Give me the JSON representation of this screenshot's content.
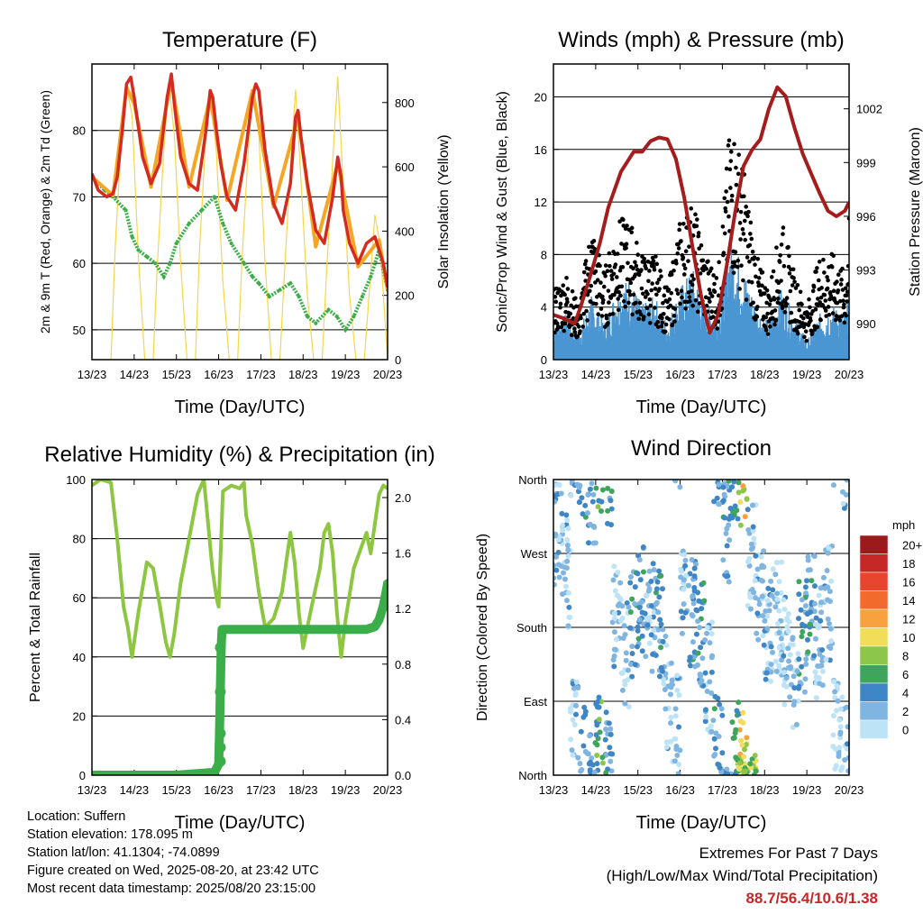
{
  "info": {
    "location": "Location: Suffern",
    "elevation": "Station elevation: 178.095 m",
    "latlon": "Station lat/lon: 41.1304; -74.0899",
    "created": "Figure created on Wed, 2025-08-20, at 23:42 UTC",
    "recent": "Most recent data timestamp: 2025/08/20 23:15:00"
  },
  "extremes": {
    "title": "Extremes For Past 7 Days",
    "subtitle": "(High/Low/Max Wind/Total Precipitation)",
    "values": "88.7/56.4/10.6/1.38"
  },
  "colors": {
    "temp_red": "#d42a20",
    "temp_orange": "#f5a623",
    "dewpoint": "#3cae49",
    "solar": "#f7d54a",
    "gust": "#000000",
    "wind": "#4b96d2",
    "pressure": "#a51c1c",
    "rh": "#8dc641",
    "precip": "#3cae49"
  },
  "chart_data": [
    {
      "type": "line",
      "title": "Temperature (F)",
      "xlabel": "Time (Day/UTC)",
      "ylabel": "2m & 9m T (Red, Orange) & 2m Td (Green)",
      "ylabel_right": "Solar Insolation (Yellow)",
      "x_ticks": [
        "13/23",
        "14/23",
        "15/23",
        "16/23",
        "17/23",
        "18/23",
        "19/23",
        "20/23"
      ],
      "y_ticks": [
        "50",
        "60",
        "70",
        "80"
      ],
      "y_ticks_right": [
        "0",
        "200",
        "400",
        "600",
        "800"
      ],
      "ylim": [
        45.5,
        90
      ],
      "ylim_right": [
        0,
        920
      ],
      "xlim": [
        0,
        7
      ],
      "series": [
        {
          "name": "2m T",
          "color": "#d42a20",
          "axis": "left",
          "x": [
            0,
            0.15,
            0.35,
            0.5,
            0.6,
            0.72,
            0.82,
            0.92,
            1.0,
            1.2,
            1.4,
            1.6,
            1.78,
            1.88,
            1.95,
            2.1,
            2.3,
            2.5,
            2.7,
            2.8,
            2.86,
            2.95,
            3.05,
            3.2,
            3.4,
            3.6,
            3.8,
            3.88,
            3.95,
            4.1,
            4.3,
            4.5,
            4.7,
            4.82,
            4.88,
            4.95,
            5.1,
            5.3,
            5.5,
            5.7,
            5.82,
            5.9,
            5.95,
            6.1,
            6.3,
            6.5,
            6.7,
            6.8,
            6.9,
            7.0
          ],
          "y": [
            73.5,
            71,
            70,
            70.5,
            73,
            80,
            87,
            88,
            85,
            76,
            72,
            75,
            85,
            88.5,
            84,
            76,
            72,
            71,
            80,
            86,
            85,
            80,
            75,
            70,
            68,
            75,
            85,
            87,
            86,
            77,
            69,
            66,
            72,
            82,
            83,
            79,
            72,
            65,
            63,
            70,
            76,
            73,
            68,
            63,
            60,
            63,
            64,
            62,
            60,
            56.4
          ]
        },
        {
          "name": "9m T",
          "color": "#f5a623",
          "axis": "left",
          "x": [
            0,
            0.5,
            0.82,
            1.0,
            1.4,
            1.88,
            2.3,
            2.8,
            3.2,
            3.8,
            4.3,
            4.88,
            5.3,
            5.82,
            6.3,
            6.8,
            7.0
          ],
          "y": [
            73,
            70.2,
            86.5,
            84,
            71.5,
            87.5,
            71.5,
            85,
            69.5,
            86,
            68.5,
            82,
            62.5,
            75,
            59.5,
            63.5,
            56
          ]
        },
        {
          "name": "2m Td",
          "color": "#3cae49",
          "axis": "left",
          "x": [
            0,
            0.3,
            0.5,
            0.8,
            0.95,
            1.1,
            1.3,
            1.5,
            1.7,
            1.85,
            2.0,
            2.3,
            2.6,
            2.9,
            3.1,
            3.3,
            3.6,
            3.8,
            3.95,
            4.2,
            4.45,
            4.7,
            4.9,
            5.1,
            5.3,
            5.6,
            5.8,
            6.0,
            6.2,
            6.4,
            6.6,
            6.8,
            7.0
          ],
          "y": [
            73,
            71,
            70,
            68,
            64,
            62,
            61,
            60,
            58,
            60,
            63,
            66,
            68,
            70,
            66,
            63,
            60,
            58,
            57,
            55,
            56,
            57,
            55,
            52,
            51,
            53,
            52,
            50,
            52,
            55,
            58,
            62,
            56
          ]
        },
        {
          "name": "Solar",
          "color": "#f7d54a",
          "axis": "right",
          "x": [
            0,
            0.45,
            0.55,
            0.7,
            0.82,
            0.95,
            1.1,
            1.25,
            1.45,
            1.55,
            1.7,
            1.82,
            1.95,
            2.1,
            2.25,
            2.45,
            2.55,
            2.7,
            2.82,
            2.95,
            3.1,
            3.25,
            3.45,
            3.55,
            3.7,
            3.82,
            3.95,
            4.1,
            4.25,
            4.45,
            4.55,
            4.7,
            4.82,
            4.95,
            5.1,
            5.25,
            5.45,
            5.55,
            5.7,
            5.82,
            5.95,
            6.1,
            6.25,
            6.45,
            6.55,
            6.7,
            6.82,
            6.95,
            7.0
          ],
          "y": [
            0,
            0,
            350,
            700,
            850,
            760,
            320,
            0,
            0,
            300,
            650,
            860,
            700,
            300,
            0,
            0,
            350,
            700,
            820,
            640,
            240,
            0,
            0,
            300,
            650,
            850,
            700,
            300,
            0,
            0,
            250,
            600,
            840,
            560,
            200,
            0,
            0,
            260,
            620,
            880,
            540,
            200,
            0,
            0,
            180,
            450,
            360,
            100,
            0
          ]
        }
      ]
    },
    {
      "type": "scatter",
      "title": "Winds (mph) & Pressure (mb)",
      "xlabel": "Time (Day/UTC)",
      "ylabel": "Sonic/Prop Wind & Gust (Blue, Black)",
      "ylabel_right": "Station Pressure (Maroon)",
      "x_ticks": [
        "13/23",
        "14/23",
        "15/23",
        "16/23",
        "17/23",
        "18/23",
        "19/23",
        "20/23"
      ],
      "y_ticks": [
        "0",
        "4",
        "8",
        "12",
        "16",
        "20"
      ],
      "y_ticks_right": [
        "990",
        "993",
        "996",
        "999",
        "1002"
      ],
      "ylim": [
        0,
        22.5
      ],
      "ylim_right": [
        988,
        1004.5
      ],
      "xlim": [
        0,
        7
      ],
      "series": [
        {
          "name": "Pressure",
          "color": "#a51c1c",
          "axis": "right",
          "kind": "line",
          "x": [
            0,
            0.25,
            0.5,
            0.65,
            0.85,
            1.1,
            1.3,
            1.6,
            1.9,
            2.1,
            2.3,
            2.5,
            2.7,
            2.9,
            3.1,
            3.3,
            3.5,
            3.7,
            3.9,
            4.1,
            4.3,
            4.5,
            4.7,
            4.9,
            5.1,
            5.3,
            5.5,
            5.7,
            5.9,
            6.1,
            6.3,
            6.5,
            6.7,
            6.9,
            7.0
          ],
          "y": [
            990.5,
            990.3,
            990,
            991,
            992.5,
            994.5,
            996.5,
            998.5,
            999.6,
            999.6,
            1000.2,
            1000.4,
            1000.3,
            999.2,
            997,
            994.2,
            991.5,
            989.5,
            990.5,
            993.2,
            996.2,
            998.8,
            999.7,
            1000.3,
            1002,
            1003.2,
            1002.7,
            1001,
            999.5,
            998.4,
            997.3,
            996.3,
            996,
            996.3,
            996.8
          ]
        },
        {
          "name": "Wind",
          "color": "#4b96d2",
          "axis": "left",
          "kind": "band",
          "x": [
            0,
            0.3,
            0.6,
            0.9,
            1.2,
            1.5,
            1.8,
            2.1,
            2.4,
            2.7,
            3.0,
            3.3,
            3.6,
            3.9,
            4.2,
            4.5,
            4.8,
            5.1,
            5.4,
            5.7,
            6.0,
            6.3,
            6.6,
            6.9,
            7.0
          ],
          "y": [
            2,
            2.5,
            1.5,
            3.5,
            2,
            4,
            4.5,
            3,
            3.5,
            2,
            4,
            5,
            3,
            2.5,
            7,
            5,
            3,
            2,
            4,
            2.5,
            1,
            2.5,
            3,
            2.5,
            3.5
          ]
        },
        {
          "name": "Gust",
          "color": "#000000",
          "axis": "left",
          "kind": "dots",
          "x": [
            0,
            0.3,
            0.6,
            0.9,
            1.2,
            1.5,
            1.8,
            2.1,
            2.4,
            2.7,
            3.0,
            3.3,
            3.6,
            3.9,
            4.2,
            4.5,
            4.8,
            5.1,
            5.4,
            5.7,
            6.0,
            6.3,
            6.6,
            6.9,
            7.0
          ],
          "y": [
            4,
            5,
            3,
            8,
            5,
            8,
            8,
            6,
            6,
            4,
            8,
            9,
            6,
            5,
            14,
            11,
            6,
            4,
            8,
            5,
            3,
            6,
            6,
            5,
            8
          ]
        }
      ]
    },
    {
      "type": "line",
      "title": "Relative Humidity (%) & Precipitation (in)",
      "xlabel": "Time (Day/UTC)",
      "ylabel": "Percent & Total Rainfall",
      "x_ticks": [
        "13/23",
        "14/23",
        "15/23",
        "16/23",
        "17/23",
        "18/23",
        "19/23",
        "20/23"
      ],
      "y_ticks": [
        "0",
        "20",
        "40",
        "60",
        "80",
        "100"
      ],
      "y_ticks_right": [
        "0.0",
        "0.4",
        "0.8",
        "1.2",
        "1.6",
        "2.0"
      ],
      "ylim": [
        0,
        100
      ],
      "ylim_right": [
        0,
        2.13
      ],
      "xlim": [
        0,
        7
      ],
      "series": [
        {
          "name": "RH",
          "color": "#8dc641",
          "axis": "left",
          "x": [
            0,
            0.2,
            0.45,
            0.6,
            0.75,
            0.85,
            0.95,
            1.1,
            1.3,
            1.45,
            1.6,
            1.75,
            1.85,
            1.95,
            2.1,
            2.3,
            2.5,
            2.65,
            2.75,
            2.85,
            2.95,
            3.0,
            3.1,
            3.3,
            3.5,
            3.6,
            3.65,
            3.8,
            3.95,
            4.1,
            4.3,
            4.5,
            4.6,
            4.7,
            4.8,
            4.9,
            5.0,
            5.2,
            5.4,
            5.5,
            5.6,
            5.7,
            5.8,
            5.9,
            6.0,
            6.2,
            6.4,
            6.5,
            6.6,
            6.7,
            6.8,
            6.9,
            7.0
          ],
          "y": [
            98,
            100,
            99,
            80,
            57,
            50,
            40,
            55,
            72,
            70,
            58,
            45,
            40,
            48,
            65,
            80,
            95,
            100,
            85,
            70,
            60,
            57,
            96,
            98,
            97,
            99,
            88,
            78,
            62,
            50,
            53,
            62,
            72,
            82,
            72,
            55,
            43,
            57,
            70,
            82,
            85,
            75,
            55,
            40,
            52,
            70,
            78,
            82,
            75,
            85,
            95,
            98,
            97
          ]
        },
        {
          "name": "Precipitation",
          "color": "#3cae49",
          "axis": "right",
          "x": [
            0,
            1.0,
            2.0,
            2.9,
            3.0,
            3.02,
            3.04,
            3.06,
            3.08,
            3.1,
            3.5,
            4.5,
            5.5,
            6.5,
            6.7,
            6.8,
            6.9,
            6.95,
            7.0
          ],
          "y": [
            0,
            0,
            0,
            0.02,
            0.08,
            0.3,
            0.6,
            0.92,
            1.05,
            1.05,
            1.05,
            1.05,
            1.05,
            1.05,
            1.07,
            1.12,
            1.22,
            1.3,
            1.38
          ]
        }
      ]
    },
    {
      "type": "scatter",
      "title": "Wind Direction",
      "xlabel": "Time (Day/UTC)",
      "ylabel": "Direction (Colored By Speed)",
      "x_ticks": [
        "13/23",
        "14/23",
        "15/23",
        "16/23",
        "17/23",
        "18/23",
        "19/23",
        "20/23"
      ],
      "y_ticks": [
        "North",
        "East",
        "South",
        "West",
        "North"
      ],
      "ylim": [
        0,
        360
      ],
      "xlim": [
        0,
        7
      ],
      "legend": {
        "title": "mph",
        "labels": [
          "20+",
          "18",
          "16",
          "14",
          "12",
          "10",
          "8",
          "6",
          "4",
          "2",
          "0"
        ],
        "colors": [
          "#9c1a1c",
          "#c62828",
          "#e8452f",
          "#f26b2c",
          "#f7a23f",
          "#f0dd5a",
          "#8cc64a",
          "#3fa45c",
          "#3f86c6",
          "#7fb5e0",
          "#bde3f6"
        ]
      },
      "series": [
        {
          "name": "Direction",
          "kind": "dots",
          "x": [
            0.1,
            0.3,
            0.5,
            0.7,
            0.9,
            1.1,
            1.3,
            1.5,
            1.7,
            1.9,
            2.1,
            2.3,
            2.5,
            2.7,
            2.9,
            3.1,
            3.3,
            3.5,
            3.7,
            3.9,
            4.1,
            4.3,
            4.5,
            4.7,
            4.9,
            5.1,
            5.3,
            5.5,
            5.7,
            5.9,
            6.1,
            6.3,
            6.5,
            6.7,
            6.9
          ],
          "y": [
            300,
            250,
            50,
            20,
            350,
            30,
            10,
            200,
            150,
            180,
            210,
            190,
            180,
            100,
            60,
            230,
            200,
            170,
            120,
            30,
            300,
            20,
            10,
            260,
            210,
            170,
            190,
            150,
            120,
            170,
            200,
            160,
            210,
            60,
            30
          ],
          "speed": [
            2,
            2,
            2,
            4,
            4,
            6,
            4,
            2,
            2,
            4,
            4,
            2,
            4,
            2,
            2,
            2,
            4,
            4,
            2,
            4,
            4,
            6,
            10,
            2,
            2,
            2,
            2,
            2,
            2,
            4,
            4,
            2,
            2,
            2,
            2
          ]
        }
      ]
    }
  ]
}
